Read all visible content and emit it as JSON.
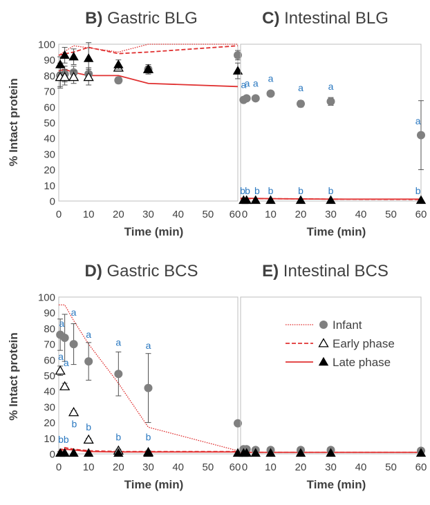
{
  "figure": {
    "y_axis_label": "% Intact protein",
    "legend": [
      {
        "label": "Infant",
        "series": "infant"
      },
      {
        "label": "Early phase",
        "series": "early"
      },
      {
        "label": "Late phase",
        "series": "late"
      }
    ],
    "colors": {
      "infant_marker": "#808080",
      "late_marker": "#000000",
      "curve": "#e03030",
      "letter": "#2a78c0",
      "error_bar": "#505050"
    }
  },
  "chart_data": [
    {
      "id": "B",
      "type": "scatter",
      "title_letter": "B)",
      "title": "Gastric BLG",
      "xlabel": "Time (min)",
      "ylabel": "% Intact protein",
      "xlim": [
        0,
        60
      ],
      "ylim": [
        0,
        100
      ],
      "xticks": [
        0,
        10,
        20,
        30,
        40,
        50,
        60
      ],
      "yticks": [
        0,
        10,
        20,
        30,
        40,
        50,
        60,
        70,
        80,
        90,
        100
      ],
      "series": [
        {
          "name": "Infant",
          "marker": "circle",
          "points": [
            {
              "x": 0.5,
              "y": 80,
              "err": 8
            },
            {
              "x": 2,
              "y": 81,
              "err": 5
            },
            {
              "x": 5,
              "y": 82,
              "err": 4
            },
            {
              "x": 10,
              "y": 81,
              "err": 4
            },
            {
              "x": 20,
              "y": 77,
              "err": 2
            },
            {
              "x": 30,
              "y": 84,
              "err": 3
            },
            {
              "x": 60,
              "y": 93,
              "err": 3
            }
          ]
        },
        {
          "name": "Early phase",
          "marker": "triangle-open",
          "points": [
            {
              "x": 0.5,
              "y": 79,
              "err": 6
            },
            {
              "x": 2,
              "y": 79,
              "err": 5
            },
            {
              "x": 5,
              "y": 79,
              "err": 4
            },
            {
              "x": 10,
              "y": 79,
              "err": 5
            },
            {
              "x": 20,
              "y": 85,
              "err": 2
            },
            {
              "x": 30,
              "y": 84,
              "err": 2
            }
          ]
        },
        {
          "name": "Late phase",
          "marker": "triangle-filled",
          "points": [
            {
              "x": 0.5,
              "y": 87,
              "err": 5
            },
            {
              "x": 2,
              "y": 93,
              "err": 5
            },
            {
              "x": 5,
              "y": 92,
              "err": 5
            },
            {
              "x": 10,
              "y": 91,
              "err": 10
            },
            {
              "x": 20,
              "y": 87,
              "err": 3
            },
            {
              "x": 30,
              "y": 84,
              "err": 3
            },
            {
              "x": 60,
              "y": 83,
              "err": 5
            }
          ]
        }
      ],
      "curves": [
        {
          "name": "Infant",
          "style": "dotted",
          "x": [
            0,
            5,
            20,
            30,
            60
          ],
          "y": [
            93,
            99,
            95,
            100,
            100
          ]
        },
        {
          "name": "Early phase",
          "style": "dashed",
          "x": [
            0,
            5,
            10,
            20,
            30,
            60
          ],
          "y": [
            93,
            95,
            98,
            94,
            95,
            99
          ]
        },
        {
          "name": "Late phase",
          "style": "solid",
          "x": [
            0,
            2,
            5,
            10,
            20,
            30,
            60
          ],
          "y": [
            83,
            84,
            82,
            80,
            80,
            75,
            73
          ]
        }
      ],
      "letters": []
    },
    {
      "id": "C",
      "type": "scatter",
      "title_letter": "C)",
      "title": "Intestinal BLG",
      "xlabel": "Time (min)",
      "ylabel": "",
      "xlim": [
        0,
        60
      ],
      "ylim": [
        0,
        100
      ],
      "xticks": [
        0,
        10,
        20,
        30,
        40,
        50,
        60
      ],
      "yticks": [],
      "series": [
        {
          "name": "Infant",
          "marker": "circle",
          "points": [
            {
              "x": 1,
              "y": 64.5,
              "err": 1
            },
            {
              "x": 2,
              "y": 65.5,
              "err": 1
            },
            {
              "x": 5,
              "y": 65.5,
              "err": 1
            },
            {
              "x": 10,
              "y": 68.5,
              "err": 1
            },
            {
              "x": 20,
              "y": 62,
              "err": 2
            },
            {
              "x": 30,
              "y": 63.5,
              "err": 2.5
            },
            {
              "x": 60,
              "y": 42,
              "err": 22
            }
          ]
        },
        {
          "name": "Late phase",
          "marker": "triangle-filled",
          "points": [
            {
              "x": 1,
              "y": 0.5,
              "err": 0
            },
            {
              "x": 2,
              "y": 0.5,
              "err": 0
            },
            {
              "x": 5,
              "y": 0.5,
              "err": 0
            },
            {
              "x": 10,
              "y": 0.5,
              "err": 0
            },
            {
              "x": 20,
              "y": 0.5,
              "err": 0
            },
            {
              "x": 30,
              "y": 0.5,
              "err": 0
            },
            {
              "x": 60,
              "y": 0.5,
              "err": 0
            }
          ]
        }
      ],
      "curves": [
        {
          "name": "Early phase",
          "style": "dashed",
          "x": [
            0,
            10,
            30,
            60
          ],
          "y": [
            1.5,
            1.5,
            1.2,
            1
          ]
        },
        {
          "name": "Late phase",
          "style": "solid",
          "x": [
            0,
            10,
            30,
            60
          ],
          "y": [
            1.8,
            1.5,
            1.2,
            1.2
          ]
        }
      ],
      "letters": [
        {
          "text": "a",
          "x": 1,
          "y": 72
        },
        {
          "text": "a",
          "x": 2.2,
          "y": 73
        },
        {
          "text": "a",
          "x": 5,
          "y": 73
        },
        {
          "text": "a",
          "x": 10,
          "y": 76
        },
        {
          "text": "a",
          "x": 20,
          "y": 70
        },
        {
          "text": "a",
          "x": 30,
          "y": 71
        },
        {
          "text": "a",
          "x": 59,
          "y": 49
        },
        {
          "text": "b",
          "x": 0.7,
          "y": 4.5
        },
        {
          "text": "b",
          "x": 2.3,
          "y": 4.5
        },
        {
          "text": "b",
          "x": 5.5,
          "y": 4.5
        },
        {
          "text": "b",
          "x": 10,
          "y": 4.5
        },
        {
          "text": "b",
          "x": 20,
          "y": 4.5
        },
        {
          "text": "b",
          "x": 30,
          "y": 4.5
        },
        {
          "text": "b",
          "x": 59,
          "y": 4.5
        }
      ]
    },
    {
      "id": "D",
      "type": "scatter",
      "title_letter": "D)",
      "title": "Gastric BCS",
      "xlabel": "Time (min)",
      "ylabel": "% Intact protein",
      "xlim": [
        0,
        60
      ],
      "ylim": [
        0,
        100
      ],
      "xticks": [
        0,
        10,
        20,
        30,
        40,
        50,
        60
      ],
      "yticks": [
        0,
        10,
        20,
        30,
        40,
        50,
        60,
        70,
        80,
        90,
        100
      ],
      "series": [
        {
          "name": "Infant",
          "marker": "circle",
          "points": [
            {
              "x": 0.5,
              "y": 76,
              "err": 10
            },
            {
              "x": 2,
              "y": 74,
              "err": 15
            },
            {
              "x": 5,
              "y": 70,
              "err": 13
            },
            {
              "x": 10,
              "y": 59,
              "err": 12
            },
            {
              "x": 20,
              "y": 51,
              "err": 14
            },
            {
              "x": 30,
              "y": 42,
              "err": 22
            },
            {
              "x": 60,
              "y": 19.5,
              "err": 0
            }
          ]
        },
        {
          "name": "Early phase",
          "marker": "triangle-open",
          "points": [
            {
              "x": 0.5,
              "y": 53,
              "err": 3
            },
            {
              "x": 2,
              "y": 43,
              "err": 2
            },
            {
              "x": 5,
              "y": 26.5,
              "err": 1
            },
            {
              "x": 10,
              "y": 9,
              "err": 1
            },
            {
              "x": 20,
              "y": 2,
              "err": 1
            },
            {
              "x": 30,
              "y": 1,
              "err": 1
            }
          ]
        },
        {
          "name": "Late phase",
          "marker": "triangle-filled",
          "points": [
            {
              "x": 0.5,
              "y": 0.5,
              "err": 1
            },
            {
              "x": 2,
              "y": 0.5,
              "err": 0
            },
            {
              "x": 5,
              "y": 0.5,
              "err": 0
            },
            {
              "x": 10,
              "y": 0.5,
              "err": 0
            },
            {
              "x": 20,
              "y": 0.5,
              "err": 0
            },
            {
              "x": 30,
              "y": 0.5,
              "err": 0
            },
            {
              "x": 60,
              "y": 0.5,
              "err": 0
            }
          ]
        }
      ],
      "curves": [
        {
          "name": "Infant",
          "style": "dotted",
          "x": [
            0,
            2,
            5,
            10,
            20,
            30,
            60
          ],
          "y": [
            95,
            95,
            85,
            70,
            45,
            17,
            2
          ]
        },
        {
          "name": "Early phase",
          "style": "dashed",
          "x": [
            0,
            2,
            5,
            10,
            20,
            30,
            60
          ],
          "y": [
            2,
            4,
            3,
            2,
            1.5,
            1.5,
            1.5
          ]
        },
        {
          "name": "Late phase",
          "style": "solid",
          "x": [
            0,
            2,
            5,
            10,
            20,
            30,
            60
          ],
          "y": [
            1.5,
            3,
            2.5,
            1.5,
            1.2,
            1.2,
            1.2
          ]
        }
      ],
      "letters": [
        {
          "text": "a",
          "x": 1,
          "y": 81
        },
        {
          "text": "a",
          "x": 0.7,
          "y": 60
        },
        {
          "text": "a",
          "x": 2.5,
          "y": 56
        },
        {
          "text": "a",
          "x": 5,
          "y": 88
        },
        {
          "text": "a",
          "x": 10,
          "y": 74
        },
        {
          "text": "a",
          "x": 20,
          "y": 69
        },
        {
          "text": "a",
          "x": 30,
          "y": 67
        },
        {
          "text": "b",
          "x": 0.7,
          "y": 7
        },
        {
          "text": "b",
          "x": 2.5,
          "y": 7
        },
        {
          "text": "b",
          "x": 5.2,
          "y": 17
        },
        {
          "text": "b",
          "x": 10,
          "y": 15
        },
        {
          "text": "b",
          "x": 20,
          "y": 8.5
        },
        {
          "text": "b",
          "x": 30,
          "y": 8.5
        }
      ]
    },
    {
      "id": "E",
      "type": "scatter",
      "title_letter": "E)",
      "title": "Intestinal BCS",
      "xlabel": "Time (min)",
      "ylabel": "",
      "xlim": [
        0,
        60
      ],
      "ylim": [
        0,
        100
      ],
      "xticks": [
        0,
        10,
        20,
        30,
        40,
        50,
        60
      ],
      "yticks": [],
      "series": [
        {
          "name": "Infant",
          "marker": "circle",
          "points": [
            {
              "x": 1,
              "y": 3,
              "err": 0
            },
            {
              "x": 2,
              "y": 3,
              "err": 0
            },
            {
              "x": 5,
              "y": 2.5,
              "err": 0
            },
            {
              "x": 10,
              "y": 2.5,
              "err": 0
            },
            {
              "x": 20,
              "y": 2.5,
              "err": 0
            },
            {
              "x": 30,
              "y": 2.5,
              "err": 0
            },
            {
              "x": 60,
              "y": 2,
              "err": 0
            }
          ]
        },
        {
          "name": "Late phase",
          "marker": "triangle-filled",
          "points": [
            {
              "x": 1,
              "y": 0.5,
              "err": 0
            },
            {
              "x": 2,
              "y": 0.5,
              "err": 0
            },
            {
              "x": 5,
              "y": 0.5,
              "err": 0
            },
            {
              "x": 10,
              "y": 0.5,
              "err": 0
            },
            {
              "x": 20,
              "y": 0.5,
              "err": 0
            },
            {
              "x": 30,
              "y": 0.5,
              "err": 0
            },
            {
              "x": 60,
              "y": 0.5,
              "err": 0
            }
          ]
        }
      ],
      "curves": [
        {
          "name": "Early phase",
          "style": "dashed",
          "x": [
            0,
            60
          ],
          "y": [
            1,
            1
          ]
        },
        {
          "name": "Late phase",
          "style": "solid",
          "x": [
            0,
            60
          ],
          "y": [
            1,
            1
          ]
        }
      ],
      "letters": []
    }
  ]
}
